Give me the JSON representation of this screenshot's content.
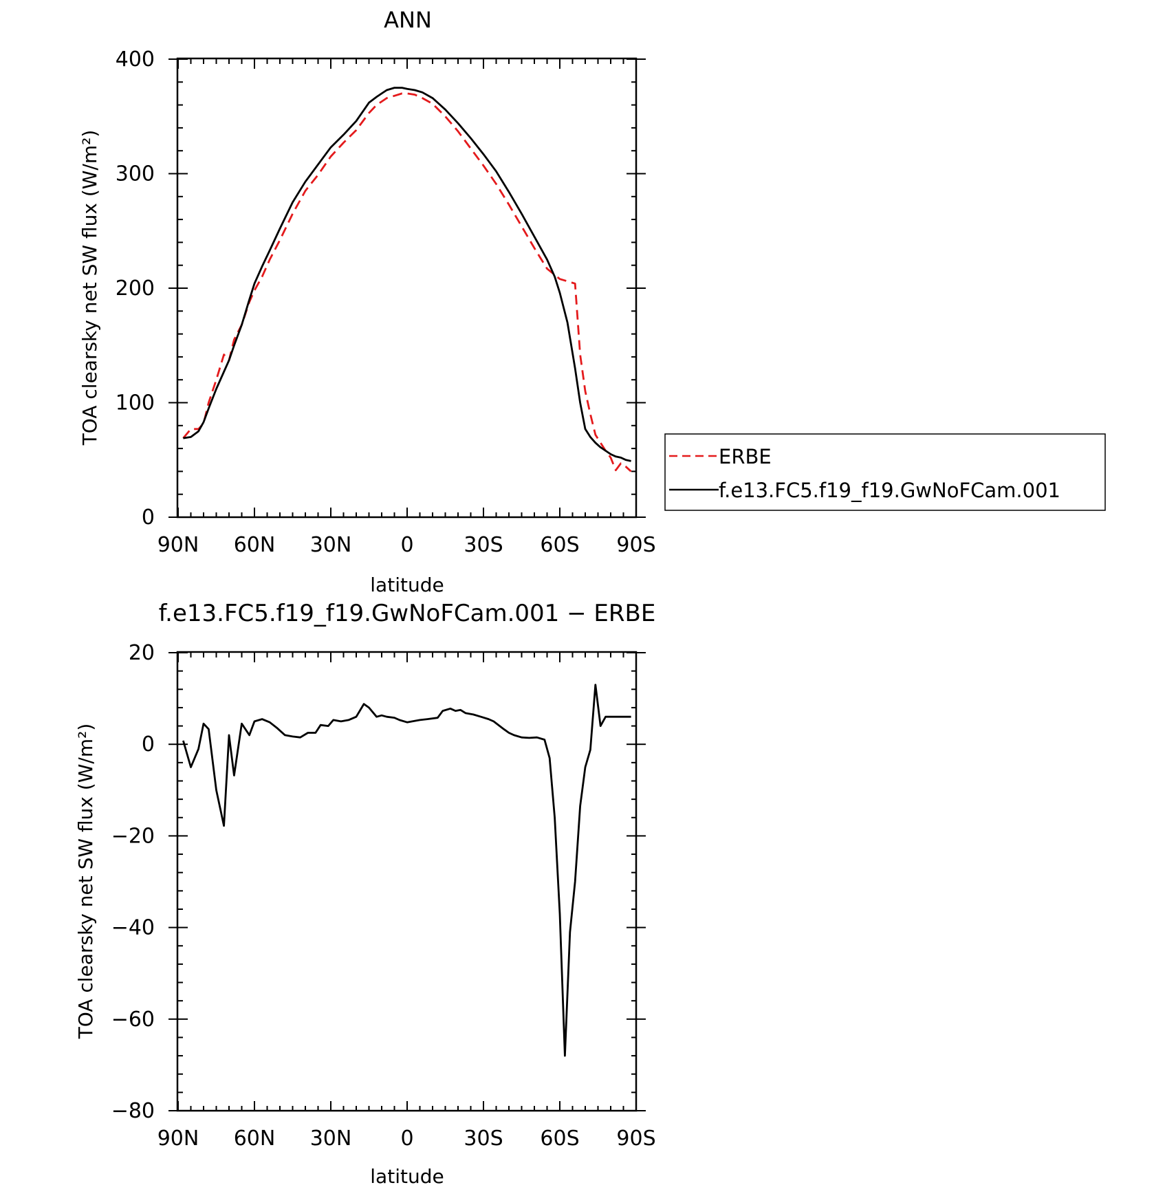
{
  "chart_data": [
    {
      "type": "line",
      "title": "ANN",
      "xlabel": "latitude",
      "ylabel": "TOA clearsky net SW flux (W/m²)",
      "xlim": [
        90,
        -90
      ],
      "ylim": [
        0,
        400
      ],
      "xticks": [
        90,
        60,
        30,
        0,
        -30,
        -60,
        -90
      ],
      "xtick_labels": [
        "90N",
        "60N",
        "30N",
        "0",
        "30S",
        "60S",
        "90S"
      ],
      "yticks": [
        0,
        100,
        200,
        300,
        400
      ],
      "ytick_labels": [
        "0",
        "100",
        "200",
        "300",
        "400"
      ],
      "legend": "right",
      "series": [
        {
          "name": "ERBE",
          "color": "#e41a1c",
          "style": "dashed",
          "x": [
            88,
            85,
            82,
            80,
            78,
            75,
            72,
            70,
            68,
            65,
            62,
            60,
            57,
            54,
            50,
            45,
            40,
            35,
            30,
            25,
            20,
            15,
            12,
            10,
            8,
            5,
            2,
            0,
            -3,
            -6,
            -10,
            -15,
            -20,
            -25,
            -30,
            -35,
            -40,
            -45,
            -50,
            -55,
            -60,
            -63,
            -66,
            -68,
            -70,
            -72,
            -74,
            -76,
            -78,
            -80,
            -82,
            -84,
            -86,
            -88
          ],
          "y": [
            69,
            77,
            77,
            82,
            100,
            120,
            142,
            137,
            155,
            168,
            188,
            198,
            210,
            225,
            242,
            265,
            285,
            299,
            315,
            327,
            338,
            353,
            360,
            363,
            366,
            368,
            370,
            370,
            369,
            366,
            361,
            350,
            337,
            322,
            307,
            291,
            273,
            254,
            235,
            217,
            208,
            206,
            204,
            142,
            110,
            90,
            72,
            65,
            58,
            52,
            41,
            47,
            44,
            40
          ]
        },
        {
          "name": "f.e13.FC5.f19_f19.GwNoFCam.001",
          "color": "#000000",
          "style": "solid",
          "x": [
            88,
            85,
            82,
            80,
            78,
            75,
            72,
            70,
            68,
            65,
            62,
            60,
            57,
            54,
            50,
            45,
            40,
            35,
            30,
            25,
            20,
            15,
            12,
            10,
            8,
            5,
            2,
            0,
            -3,
            -6,
            -10,
            -15,
            -20,
            -25,
            -30,
            -35,
            -40,
            -45,
            -50,
            -55,
            -58,
            -60,
            -63,
            -66,
            -68,
            -70,
            -72,
            -74,
            -76,
            -78,
            -80,
            -82,
            -84,
            -86,
            -88
          ],
          "y": [
            69,
            70,
            75,
            83,
            95,
            112,
            127,
            137,
            150,
            168,
            190,
            204,
            219,
            233,
            252,
            275,
            293,
            308,
            323,
            334,
            346,
            362,
            367,
            370,
            373,
            375,
            375,
            374,
            373,
            371,
            366,
            356,
            344,
            331,
            317,
            302,
            284,
            265,
            245,
            225,
            210,
            196,
            170,
            130,
            100,
            77,
            70,
            65,
            61,
            58,
            55,
            53,
            52,
            50,
            49
          ]
        }
      ]
    },
    {
      "type": "line",
      "title": "f.e13.FC5.f19_f19.GwNoFCam.001 − ERBE",
      "xlabel": "latitude",
      "ylabel": "TOA clearsky net SW flux (W/m²)",
      "xlim": [
        90,
        -90
      ],
      "ylim": [
        -80,
        20
      ],
      "xticks": [
        90,
        60,
        30,
        0,
        -30,
        -60,
        -90
      ],
      "xtick_labels": [
        "90N",
        "60N",
        "30N",
        "0",
        "30S",
        "60S",
        "90S"
      ],
      "yticks": [
        -80,
        -60,
        -40,
        -20,
        0,
        20
      ],
      "ytick_labels": [
        "−80",
        "−60",
        "−40",
        "−20",
        "0",
        "20"
      ],
      "series": [
        {
          "color": "#000000",
          "style": "solid",
          "x": [
            88,
            85,
            82,
            80,
            78,
            75,
            72,
            70,
            68,
            65,
            62,
            60,
            57,
            54,
            51,
            48,
            45,
            42,
            39,
            36,
            34,
            31,
            29,
            26,
            23,
            20,
            17,
            15,
            12,
            10,
            8,
            5,
            3,
            0,
            -2,
            -5,
            -8,
            -12,
            -14,
            -17,
            -19,
            -21,
            -23,
            -26,
            -29,
            -32,
            -34,
            -38,
            -40,
            -42,
            -45,
            -48,
            -51,
            -54,
            -56,
            -58,
            -60,
            -62,
            -64,
            -66,
            -68,
            -70,
            -72,
            -74,
            -76,
            -78,
            -80,
            -82,
            -84,
            -86,
            -88
          ],
          "y": [
            0.8,
            -5,
            -1,
            4.5,
            3.3,
            -10,
            -17.8,
            2,
            -6.8,
            4.5,
            2,
            5,
            5.5,
            4.8,
            3.5,
            2,
            1.7,
            1.5,
            2.5,
            2.5,
            4.2,
            4,
            5.3,
            5,
            5.3,
            6,
            8.8,
            8,
            6,
            6.3,
            6,
            5.8,
            5.3,
            4.8,
            5,
            5.3,
            5.5,
            5.8,
            7.3,
            7.8,
            7.3,
            7.5,
            6.8,
            6.5,
            6,
            5.5,
            5,
            3.3,
            2.5,
            2,
            1.5,
            1.4,
            1.5,
            1,
            -3,
            -16,
            -37,
            -68,
            -41,
            -30,
            -13.5,
            -5,
            -1.2,
            13,
            4,
            6,
            6,
            6,
            6,
            6,
            6
          ]
        }
      ]
    }
  ]
}
